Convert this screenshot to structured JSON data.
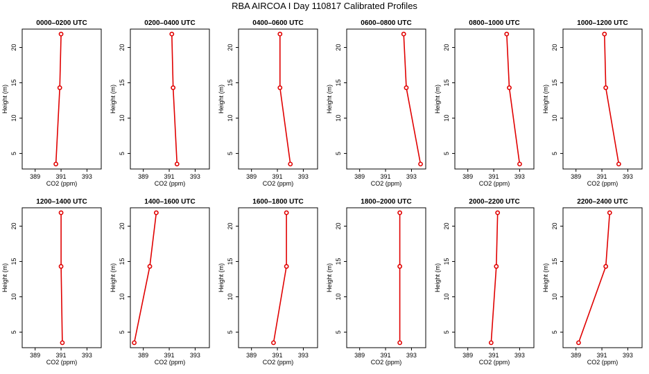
{
  "chart_data": {
    "type": "line",
    "title": "RBA AIRCOA I  Day 110817  Calibrated Profiles",
    "xlabel": "CO2 (ppm)",
    "ylabel": "Height (m)",
    "xlim": [
      388.0,
      394.1
    ],
    "ylim": [
      2.8,
      22.6
    ],
    "xticks": [
      389,
      391,
      393
    ],
    "xtick_labels": [
      "389",
      "391",
      "393"
    ],
    "yticks": [
      5,
      10,
      15,
      20
    ],
    "ytick_labels": [
      "5",
      "10",
      "15",
      "20"
    ],
    "heights": [
      3.5,
      14.3,
      21.9
    ],
    "color": "#e00000",
    "panels": [
      {
        "title": "0000–0200 UTC",
        "x": [
          390.6,
          390.9,
          391.0
        ]
      },
      {
        "title": "0200–0400 UTC",
        "x": [
          391.6,
          391.3,
          391.2
        ]
      },
      {
        "title": "0400–0600 UTC",
        "x": [
          392.0,
          391.2,
          391.2
        ]
      },
      {
        "title": "0600–0800 UTC",
        "x": [
          393.7,
          392.6,
          392.4
        ]
      },
      {
        "title": "0800–1000 UTC",
        "x": [
          393.0,
          392.2,
          392.0
        ]
      },
      {
        "title": "1000–1200 UTC",
        "x": [
          392.3,
          391.3,
          391.2
        ]
      },
      {
        "title": "1200–1400 UTC",
        "x": [
          391.1,
          391.0,
          391.0
        ]
      },
      {
        "title": "1400–1600 UTC",
        "x": [
          388.3,
          389.5,
          390.0
        ]
      },
      {
        "title": "1600–1800 UTC",
        "x": [
          390.7,
          391.7,
          391.7
        ]
      },
      {
        "title": "1800–2000 UTC",
        "x": [
          392.1,
          392.1,
          392.1
        ]
      },
      {
        "title": "2000–2200 UTC",
        "x": [
          390.8,
          391.2,
          391.3
        ]
      },
      {
        "title": "2200–2400 UTC",
        "x": [
          389.2,
          391.3,
          391.6
        ]
      }
    ]
  }
}
